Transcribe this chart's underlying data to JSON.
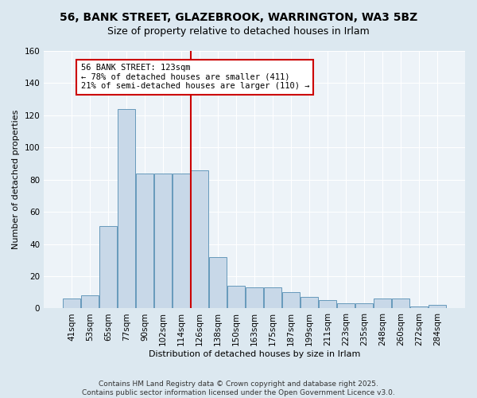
{
  "title": "56, BANK STREET, GLAZEBROOK, WARRINGTON, WA3 5BZ",
  "subtitle": "Size of property relative to detached houses in Irlam",
  "xlabel": "Distribution of detached houses by size in Irlam",
  "ylabel": "Number of detached properties",
  "categories": [
    "41sqm",
    "53sqm",
    "65sqm",
    "77sqm",
    "90sqm",
    "102sqm",
    "114sqm",
    "126sqm",
    "138sqm",
    "150sqm",
    "163sqm",
    "175sqm",
    "187sqm",
    "199sqm",
    "211sqm",
    "223sqm",
    "235sqm",
    "248sqm",
    "260sqm",
    "272sqm",
    "284sqm"
  ],
  "values": [
    6,
    8,
    51,
    124,
    84,
    84,
    84,
    86,
    32,
    14,
    13,
    13,
    10,
    7,
    5,
    3,
    3,
    6,
    6,
    1,
    2
  ],
  "bar_color": "#c8d8e8",
  "bar_edge_color": "#6699bb",
  "vline_color": "#cc0000",
  "annotation_text": "56 BANK STREET: 123sqm\n← 78% of detached houses are smaller (411)\n21% of semi-detached houses are larger (110) →",
  "annotation_box_color": "#ffffff",
  "annotation_box_edge": "#cc0000",
  "footer": "Contains HM Land Registry data © Crown copyright and database right 2025.\nContains public sector information licensed under the Open Government Licence v3.0.",
  "bg_color": "#dce8f0",
  "plot_bg_color": "#edf3f8",
  "ylim": [
    0,
    160
  ],
  "yticks": [
    0,
    20,
    40,
    60,
    80,
    100,
    120,
    140,
    160
  ],
  "title_fontsize": 10,
  "subtitle_fontsize": 9,
  "axis_label_fontsize": 8,
  "tick_fontsize": 7.5,
  "annotation_fontsize": 7.5,
  "footer_fontsize": 6.5
}
